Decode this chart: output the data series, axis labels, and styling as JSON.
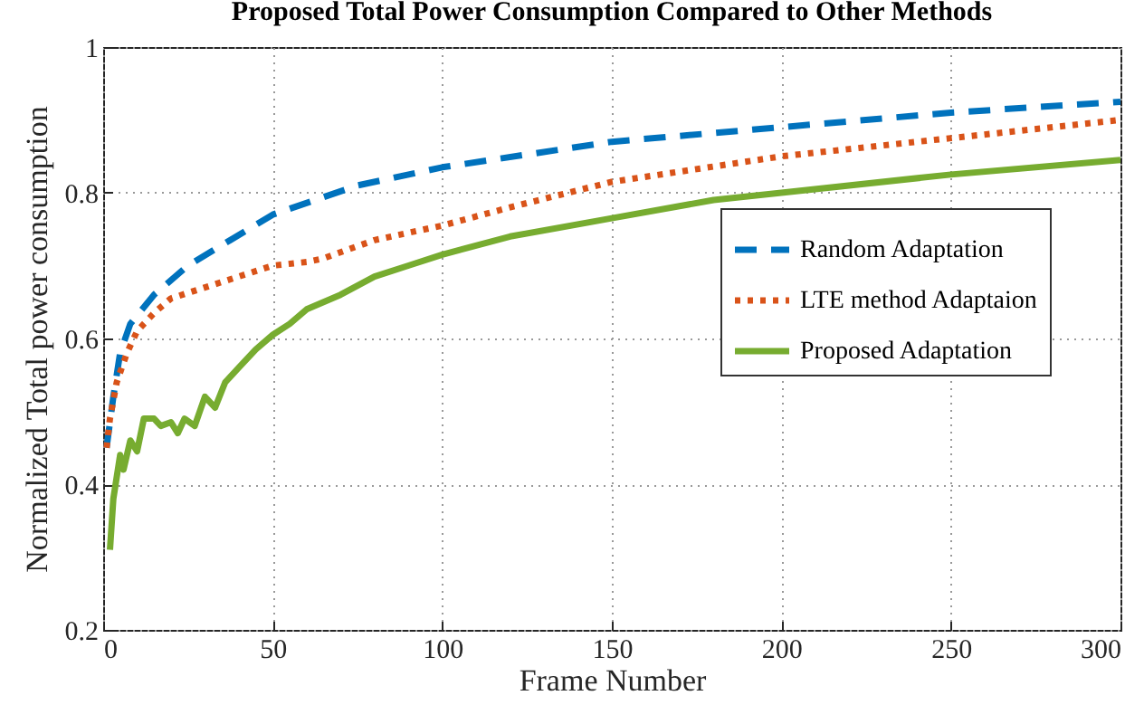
{
  "chart_data": {
    "type": "line",
    "title": "Proposed Total Power Consumption Compared to Other Methods",
    "xlabel": "Frame Number",
    "ylabel": "Normalized Total power consumption",
    "xlim": [
      0,
      300
    ],
    "ylim": [
      0.2,
      1
    ],
    "xticks": [
      0,
      50,
      100,
      150,
      200,
      250,
      300
    ],
    "yticks": [
      0.2,
      0.4,
      0.6,
      0.8,
      1
    ],
    "grid": true,
    "legend": "right",
    "series": [
      {
        "name": "Random Adaptation",
        "color": "#0072bd",
        "line_style": "dashed",
        "x": [
          1,
          3,
          5,
          8,
          15,
          25,
          50,
          75,
          100,
          150,
          200,
          250,
          300
        ],
        "values": [
          0.45,
          0.52,
          0.58,
          0.62,
          0.66,
          0.7,
          0.77,
          0.81,
          0.835,
          0.87,
          0.89,
          0.91,
          0.925
        ]
      },
      {
        "name": "LTE method Adaptaion",
        "color": "#d95319",
        "line_style": "dotted",
        "x": [
          1,
          2,
          4,
          7,
          10,
          15,
          20,
          30,
          40,
          50,
          60,
          65,
          80,
          100,
          120,
          150,
          200,
          250,
          300
        ],
        "values": [
          0.45,
          0.49,
          0.54,
          0.58,
          0.61,
          0.635,
          0.655,
          0.67,
          0.685,
          0.7,
          0.705,
          0.71,
          0.735,
          0.755,
          0.78,
          0.815,
          0.85,
          0.875,
          0.9
        ]
      },
      {
        "name": "Proposed Adaptation",
        "color": "#77ac30",
        "line_style": "solid",
        "x": [
          2,
          3,
          5,
          6,
          8,
          10,
          12,
          15,
          17,
          20,
          22,
          24,
          27,
          30,
          33,
          36,
          40,
          45,
          50,
          55,
          60,
          70,
          80,
          90,
          100,
          120,
          150,
          180,
          200,
          250,
          300
        ],
        "values": [
          0.31,
          0.38,
          0.44,
          0.42,
          0.46,
          0.445,
          0.49,
          0.49,
          0.48,
          0.485,
          0.47,
          0.49,
          0.48,
          0.52,
          0.505,
          0.54,
          0.56,
          0.585,
          0.605,
          0.62,
          0.64,
          0.66,
          0.685,
          0.7,
          0.715,
          0.74,
          0.765,
          0.79,
          0.8,
          0.825,
          0.845
        ]
      }
    ]
  }
}
